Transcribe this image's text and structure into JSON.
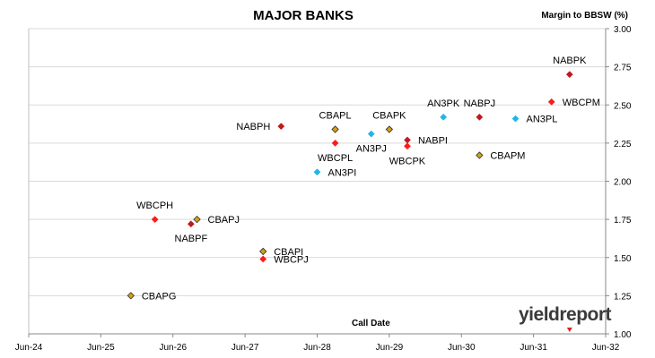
{
  "chart_data": {
    "type": "scatter",
    "title": "MAJOR BANKS",
    "ylabel": "Margin to BBSW (%)",
    "xlabel": "Call Date",
    "watermark": "yieldreport",
    "x_ticks": [
      "Jun-24",
      "Jun-25",
      "Jun-26",
      "Jun-27",
      "Jun-28",
      "Jun-29",
      "Jun-30",
      "Jun-31",
      "Jun-32"
    ],
    "y_ticks": [
      "1.00",
      "1.25",
      "1.50",
      "1.75",
      "2.00",
      "2.25",
      "2.50",
      "2.75",
      "3.00"
    ],
    "ylim": [
      1.0,
      3.0
    ],
    "xlim": [
      "Jun-24",
      "Jun-32"
    ],
    "grid": "horizontal",
    "colors": {
      "CBA": "#d4a017",
      "NAB": "#c0181d",
      "WBC": "#ff1a1a",
      "ANZ": "#20b6e8",
      "gridline": "#d9d9d9"
    },
    "points": [
      {
        "label": "CBAPG",
        "issuer": "CBA",
        "x": "Nov-2025",
        "y": 1.25,
        "label_pos": "right"
      },
      {
        "label": "WBCPH",
        "issuer": "WBC",
        "x": "Mar-2026",
        "y": 1.75,
        "label_pos": "above"
      },
      {
        "label": "NABPF",
        "issuer": "NAB",
        "x": "Sep-2026",
        "y": 1.72,
        "label_pos": "below"
      },
      {
        "label": "CBAPJ",
        "issuer": "CBA",
        "x": "Oct-2026",
        "y": 1.75,
        "label_pos": "right"
      },
      {
        "label": "CBAPI",
        "issuer": "CBA",
        "x": "Sep-2027",
        "y": 1.54,
        "label_pos": "right"
      },
      {
        "label": "WBCPJ",
        "issuer": "WBC",
        "x": "Sep-2027",
        "y": 1.49,
        "label_pos": "right"
      },
      {
        "label": "NABPH",
        "issuer": "NAB",
        "x": "Dec-2027",
        "y": 2.36,
        "label_pos": "left"
      },
      {
        "label": "AN3PI",
        "issuer": "ANZ",
        "x": "Jun-2028",
        "y": 2.06,
        "label_pos": "right"
      },
      {
        "label": "CBAPL",
        "issuer": "CBA",
        "x": "Sep-2028",
        "y": 2.34,
        "label_pos": "above"
      },
      {
        "label": "WBCPL",
        "issuer": "WBC",
        "x": "Sep-2028",
        "y": 2.25,
        "label_pos": "below"
      },
      {
        "label": "AN3PJ",
        "issuer": "ANZ",
        "x": "Mar-2029",
        "y": 2.31,
        "label_pos": "below"
      },
      {
        "label": "CBAPK",
        "issuer": "CBA",
        "x": "Jun-2029",
        "y": 2.34,
        "label_pos": "above"
      },
      {
        "label": "NABPI",
        "issuer": "NAB",
        "x": "Sep-2029",
        "y": 2.27,
        "label_pos": "right"
      },
      {
        "label": "WBCPK",
        "issuer": "WBC",
        "x": "Sep-2029",
        "y": 2.23,
        "label_pos": "below"
      },
      {
        "label": "AN3PK",
        "issuer": "ANZ",
        "x": "Mar-2030",
        "y": 2.42,
        "label_pos": "above"
      },
      {
        "label": "CBAPM",
        "issuer": "CBA",
        "x": "Sep-2030",
        "y": 2.17,
        "label_pos": "right"
      },
      {
        "label": "NABPJ",
        "issuer": "NAB",
        "x": "Sep-2030",
        "y": 2.42,
        "label_pos": "above"
      },
      {
        "label": "AN3PL",
        "issuer": "ANZ",
        "x": "Mar-2031",
        "y": 2.41,
        "label_pos": "right"
      },
      {
        "label": "WBCPM",
        "issuer": "WBC",
        "x": "Sep-2031",
        "y": 2.52,
        "label_pos": "right"
      },
      {
        "label": "NABPK",
        "issuer": "NAB",
        "x": "Dec-2031",
        "y": 2.7,
        "label_pos": "above"
      }
    ]
  }
}
